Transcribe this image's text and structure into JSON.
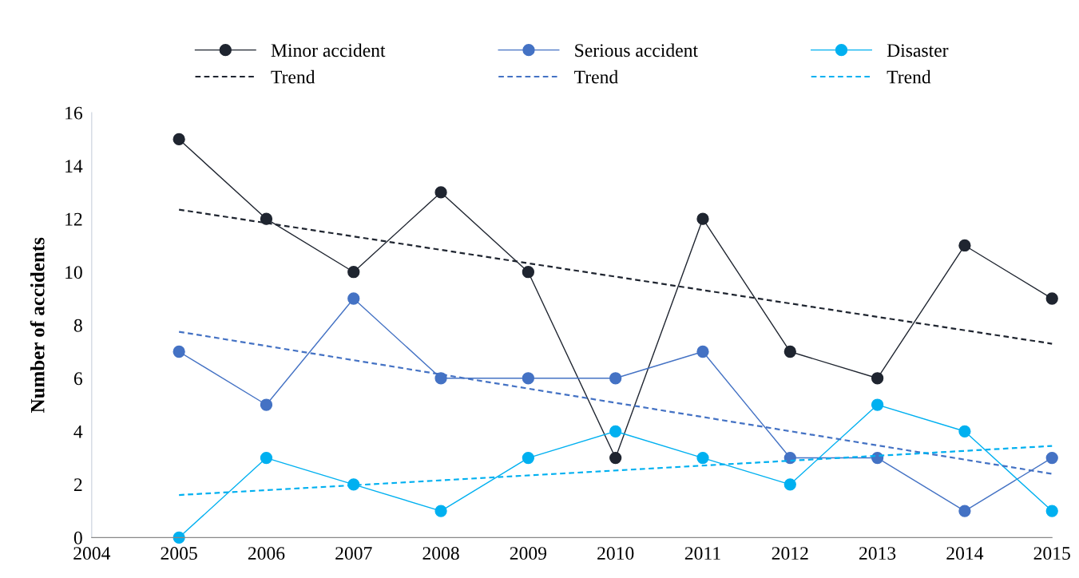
{
  "chart_data": {
    "type": "line",
    "ylabel": "Number of accidents",
    "xlim": [
      2004,
      2015
    ],
    "xticks": [
      2004,
      2005,
      2006,
      2007,
      2008,
      2009,
      2010,
      2011,
      2012,
      2013,
      2014,
      2015
    ],
    "ylim": [
      0,
      16
    ],
    "yticks": [
      0,
      2,
      4,
      6,
      8,
      10,
      12,
      14,
      16
    ],
    "grid": false,
    "legend": "top",
    "series": [
      {
        "name": "Minor accident",
        "color": "#1f2530",
        "marker": "circle",
        "line_style": "solid",
        "x": [
          2005,
          2006,
          2007,
          2008,
          2009,
          2010,
          2011,
          2012,
          2013,
          2014,
          2015
        ],
        "values": [
          15,
          12,
          10,
          13,
          10,
          3,
          12,
          7,
          6,
          11,
          9
        ]
      },
      {
        "name": "Serious accident",
        "color": "#4472c4",
        "marker": "circle",
        "line_style": "solid",
        "x": [
          2005,
          2006,
          2007,
          2008,
          2009,
          2010,
          2011,
          2012,
          2013,
          2014,
          2015
        ],
        "values": [
          7,
          5,
          9,
          6,
          6,
          6,
          7,
          3,
          3,
          1,
          3
        ]
      },
      {
        "name": "Disaster",
        "color": "#00b0f0",
        "marker": "circle",
        "line_style": "solid",
        "x": [
          2005,
          2006,
          2007,
          2008,
          2009,
          2010,
          2011,
          2012,
          2013,
          2014,
          2015
        ],
        "values": [
          0,
          3,
          2,
          1,
          3,
          4,
          3,
          2,
          5,
          4,
          1
        ]
      },
      {
        "name": "Trend",
        "color": "#1f2530",
        "marker": "none",
        "line_style": "dashed",
        "x": [
          2005,
          2015
        ],
        "values": [
          12.35,
          7.3
        ]
      },
      {
        "name": "Trend",
        "color": "#4472c4",
        "marker": "none",
        "line_style": "dashed",
        "x": [
          2005,
          2015
        ],
        "values": [
          7.75,
          2.4
        ]
      },
      {
        "name": "Trend",
        "color": "#00b0f0",
        "marker": "none",
        "line_style": "dashed",
        "x": [
          2005,
          2015
        ],
        "values": [
          1.6,
          3.45
        ]
      }
    ]
  }
}
